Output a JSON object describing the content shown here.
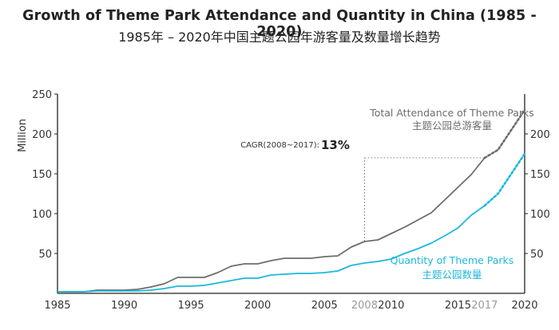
{
  "header": {
    "title_en": "Growth of Theme Park Attendance and Quantity in China (1985 - 2020)",
    "title_zh": "1985年 – 2020年中国主题公园年游客量及数量增长趋势"
  },
  "colors": {
    "attendance": "#6d6d6d",
    "quantity": "#1cb8dc",
    "axis": "#222222",
    "highlight_tick": "#9a9a9a"
  },
  "chart_data": {
    "type": "line",
    "ylabel": "Million",
    "ylim_left": [
      0,
      250
    ],
    "ylim_right": [
      0,
      250
    ],
    "yticks_left": [
      50,
      100,
      150,
      200,
      250
    ],
    "yticks_right": [
      50,
      100,
      150,
      200
    ],
    "xlim": [
      1985,
      2020
    ],
    "xticks": [
      1985,
      1990,
      1995,
      2000,
      2005,
      2008,
      2010,
      2015,
      2017,
      2020
    ],
    "xticks_highlight": [
      2008,
      2017
    ],
    "legend": "inline",
    "grid": false,
    "series": [
      {
        "name": "Total Attendance of Theme Parks",
        "name_zh": "主题公园总游客量",
        "x": [
          1985,
          1986,
          1987,
          1988,
          1989,
          1990,
          1991,
          1992,
          1993,
          1994,
          1995,
          1996,
          1997,
          1998,
          1999,
          2000,
          2001,
          2002,
          2003,
          2004,
          2005,
          2006,
          2007,
          2008,
          2009,
          2010,
          2011,
          2012,
          2013,
          2014,
          2015,
          2016,
          2017,
          2018,
          2019,
          2020
        ],
        "values": [
          2,
          2,
          2,
          4,
          4,
          4,
          5,
          8,
          12,
          20,
          20,
          20,
          26,
          34,
          37,
          37,
          41,
          44,
          44,
          44,
          46,
          47,
          58,
          65,
          67,
          75,
          83,
          92,
          101,
          117,
          133,
          149,
          170,
          180,
          205,
          230
        ],
        "projected_from": 2017
      },
      {
        "name": "Quantity of Theme Parks",
        "name_zh": "主题公园数量",
        "x": [
          1985,
          1986,
          1987,
          1988,
          1989,
          1990,
          1991,
          1992,
          1993,
          1994,
          1995,
          1996,
          1997,
          1998,
          1999,
          2000,
          2001,
          2002,
          2003,
          2004,
          2005,
          2006,
          2007,
          2008,
          2009,
          2010,
          2011,
          2012,
          2013,
          2014,
          2015,
          2016,
          2017,
          2018,
          2019,
          2020
        ],
        "values": [
          2,
          2,
          2,
          3,
          3,
          3,
          3,
          4,
          6,
          9,
          9,
          10,
          13,
          16,
          19,
          19,
          23,
          24,
          25,
          25,
          26,
          28,
          35,
          38,
          40,
          43,
          50,
          56,
          63,
          72,
          82,
          98,
          110,
          125,
          150,
          175
        ],
        "projected_from": 2017
      }
    ],
    "annotation": {
      "label": "CAGR(2008~2017):",
      "value": "13%",
      "from_year": 2008,
      "to_year": 2017
    }
  }
}
